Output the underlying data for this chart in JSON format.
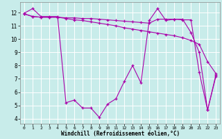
{
  "background_color": "#c8ecea",
  "line_color": "#aa00aa",
  "grid_color": "#ffffff",
  "xlabel": "Windchill (Refroidissement éolien,°C)",
  "xlim": [
    -0.5,
    23.5
  ],
  "ylim": [
    3.6,
    12.8
  ],
  "yticks": [
    4,
    5,
    6,
    7,
    8,
    9,
    10,
    11,
    12
  ],
  "xticks": [
    0,
    1,
    2,
    3,
    4,
    5,
    6,
    7,
    8,
    9,
    10,
    11,
    12,
    13,
    14,
    15,
    16,
    17,
    18,
    19,
    20,
    21,
    22,
    23
  ],
  "series1_x": [
    0,
    1,
    2,
    3,
    4,
    5,
    6,
    7,
    8,
    9,
    10,
    11,
    12,
    13,
    14,
    15,
    16,
    17,
    18,
    19,
    20,
    21,
    22,
    23
  ],
  "series1_y": [
    11.95,
    12.3,
    11.7,
    11.7,
    11.7,
    5.2,
    5.4,
    4.8,
    4.8,
    4.1,
    5.1,
    5.5,
    6.8,
    8.0,
    6.7,
    11.4,
    12.3,
    11.4,
    11.5,
    11.5,
    10.5,
    9.0,
    4.65,
    7.3
  ],
  "series2_x": [
    0,
    1,
    2,
    3,
    4,
    5,
    6,
    7,
    8,
    9,
    10,
    11,
    12,
    13,
    14,
    15,
    16,
    17,
    18,
    19,
    20,
    21,
    22,
    23
  ],
  "series2_y": [
    11.9,
    11.7,
    11.65,
    11.65,
    11.65,
    11.55,
    11.45,
    11.4,
    11.3,
    11.2,
    11.1,
    11.0,
    10.85,
    10.75,
    10.65,
    10.55,
    10.45,
    10.35,
    10.25,
    10.1,
    9.9,
    9.6,
    8.3,
    7.4
  ],
  "series3_x": [
    0,
    1,
    2,
    3,
    4,
    5,
    6,
    7,
    8,
    9,
    10,
    11,
    12,
    13,
    14,
    15,
    16,
    17,
    18,
    19,
    20,
    21,
    22,
    23
  ],
  "series3_y": [
    11.9,
    11.7,
    11.65,
    11.65,
    11.65,
    11.6,
    11.6,
    11.55,
    11.55,
    11.5,
    11.45,
    11.4,
    11.35,
    11.3,
    11.25,
    11.2,
    11.5,
    11.5,
    11.5,
    11.45,
    11.45,
    7.5,
    4.65,
    7.2
  ]
}
